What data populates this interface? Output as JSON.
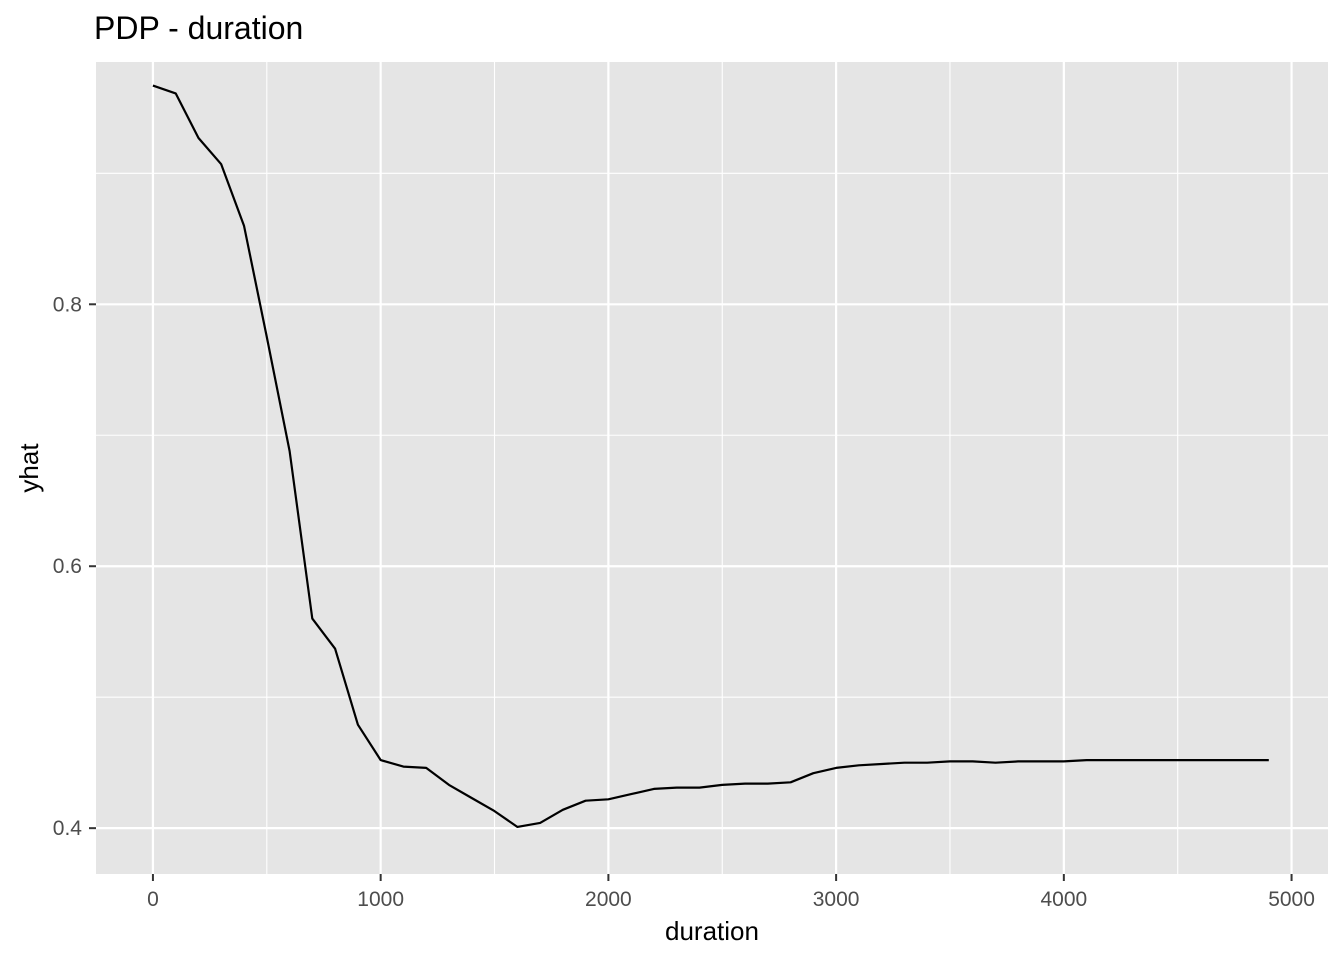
{
  "chart_data": {
    "type": "line",
    "title": "PDP - duration",
    "xlabel": "duration",
    "ylabel": "yhat",
    "xlim": [
      -250,
      5160
    ],
    "ylim": [
      0.365,
      0.985
    ],
    "x_ticks": [
      0,
      1000,
      2000,
      3000,
      4000,
      5000
    ],
    "x_tick_labels": [
      "0",
      "1000",
      "2000",
      "3000",
      "4000",
      "5000"
    ],
    "x_minor_ticks": [
      500,
      1500,
      2500,
      3500,
      4500
    ],
    "y_ticks": [
      0.4,
      0.6,
      0.8
    ],
    "y_tick_labels": [
      "0.4",
      "0.6",
      "0.8"
    ],
    "y_minor_ticks": [
      0.5,
      0.7,
      0.9
    ],
    "grid": true,
    "panel_color": "#e5e5e5",
    "grid_color": "#ffffff",
    "line_color": "#000000",
    "series": [
      {
        "x": [
          0,
          100,
          200,
          300,
          400,
          500,
          600,
          700,
          800,
          900,
          1000,
          1100,
          1200,
          1300,
          1400,
          1500,
          1600,
          1700,
          1800,
          1900,
          2000,
          2100,
          2200,
          2300,
          2400,
          2500,
          2600,
          2700,
          2800,
          2900,
          3000,
          3100,
          3200,
          3300,
          3400,
          3500,
          3600,
          3700,
          3800,
          3900,
          4000,
          4100,
          4200,
          4300,
          4400,
          4500,
          4600,
          4700,
          4800,
          4900
        ],
        "y": [
          0.967,
          0.961,
          0.927,
          0.907,
          0.86,
          0.775,
          0.688,
          0.56,
          0.537,
          0.479,
          0.452,
          0.447,
          0.446,
          0.433,
          0.423,
          0.413,
          0.401,
          0.404,
          0.414,
          0.421,
          0.422,
          0.426,
          0.43,
          0.431,
          0.431,
          0.433,
          0.434,
          0.434,
          0.435,
          0.442,
          0.446,
          0.448,
          0.449,
          0.45,
          0.45,
          0.451,
          0.451,
          0.45,
          0.451,
          0.451,
          0.451,
          0.452,
          0.452,
          0.452,
          0.452,
          0.452,
          0.452,
          0.452,
          0.452,
          0.452
        ]
      }
    ]
  }
}
